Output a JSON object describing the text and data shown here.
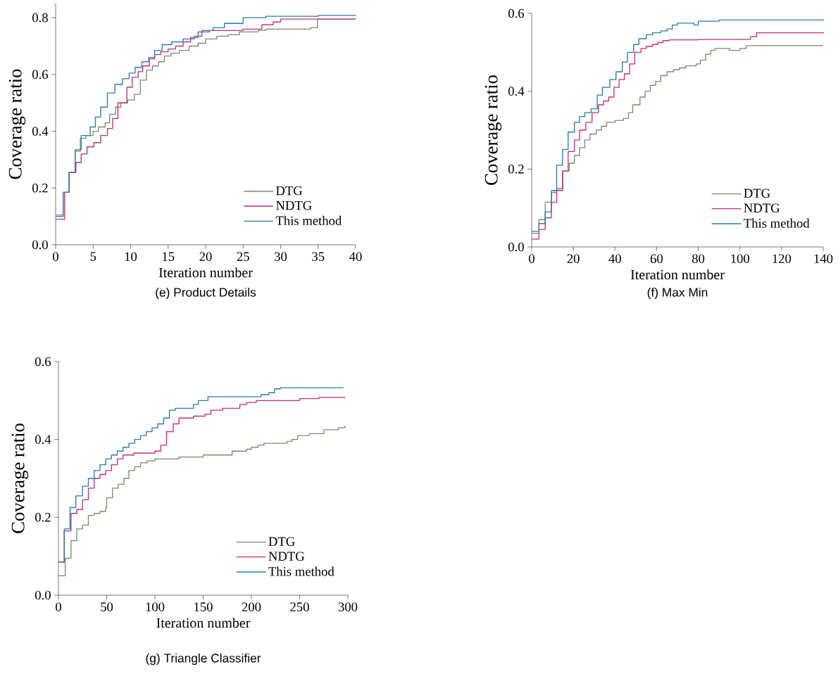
{
  "chart_data": [
    {
      "type": "step",
      "title": "(e) Product Details",
      "xlabel": "Iteration number",
      "ylabel": "Coverage ratio",
      "xlim": [
        0,
        40
      ],
      "ylim": [
        0,
        0.85
      ],
      "xticks": [
        0,
        5,
        10,
        15,
        20,
        25,
        30,
        35,
        40
      ],
      "yticks": [
        {
          "value": 0,
          "label": "0.0"
        },
        {
          "value": 0.2,
          "label": "0.2"
        },
        {
          "value": 0.4,
          "label": "0.4"
        },
        {
          "value": 0.6,
          "label": "0.6"
        },
        {
          "value": 0.8,
          "label": "0.8"
        }
      ],
      "legend": "bottom right",
      "grid": false,
      "series": [
        {
          "name": "DTG",
          "color": "#7a8c6a",
          "x": [
            0,
            1,
            1.8,
            2.6,
            3.3,
            4,
            5,
            5.7,
            6.6,
            7.2,
            8,
            8.7,
            9.6,
            10.5,
            11.3,
            12.1,
            12.9,
            13.7,
            14.5,
            15.4,
            16.5,
            17.8,
            19,
            20,
            21.5,
            23,
            24.5,
            27,
            28,
            34,
            34.9,
            40
          ],
          "values": [
            0.105,
            0.185,
            0.255,
            0.33,
            0.375,
            0.385,
            0.4,
            0.415,
            0.43,
            0.46,
            0.485,
            0.5,
            0.51,
            0.53,
            0.58,
            0.615,
            0.63,
            0.645,
            0.665,
            0.675,
            0.685,
            0.7,
            0.71,
            0.725,
            0.735,
            0.74,
            0.75,
            0.755,
            0.76,
            0.765,
            0.795,
            0.795
          ]
        },
        {
          "name": "NDTG",
          "color": "#c0307a",
          "x": [
            0,
            1.2,
            1.8,
            2.7,
            3.4,
            4.2,
            5.1,
            6,
            6.9,
            7.6,
            8.3,
            9.5,
            10.2,
            11,
            11.6,
            12.5,
            13.2,
            14,
            15,
            16,
            17,
            18,
            19,
            20.5,
            25,
            27.5,
            29,
            30,
            40
          ],
          "values": [
            0.09,
            0.185,
            0.255,
            0.29,
            0.32,
            0.345,
            0.36,
            0.385,
            0.41,
            0.445,
            0.5,
            0.555,
            0.59,
            0.61,
            0.63,
            0.655,
            0.67,
            0.68,
            0.69,
            0.7,
            0.715,
            0.73,
            0.75,
            0.755,
            0.76,
            0.775,
            0.785,
            0.795,
            0.795
          ]
        },
        {
          "name": "This method",
          "color": "#2a7ca8",
          "x": [
            0,
            1,
            1.8,
            2.6,
            3.4,
            4.6,
            5.3,
            6,
            6.9,
            7.9,
            8.9,
            9.8,
            10.6,
            11.5,
            12.4,
            13.2,
            14.2,
            15.5,
            17,
            18.5,
            19.5,
            21,
            22.5,
            25,
            28,
            35,
            40
          ],
          "values": [
            0.1,
            0.185,
            0.255,
            0.335,
            0.385,
            0.415,
            0.45,
            0.485,
            0.535,
            0.565,
            0.585,
            0.605,
            0.625,
            0.645,
            0.66,
            0.685,
            0.705,
            0.715,
            0.725,
            0.735,
            0.755,
            0.765,
            0.78,
            0.8,
            0.805,
            0.808,
            0.81
          ]
        }
      ]
    },
    {
      "type": "step",
      "title": "(f) Max Min",
      "xlabel": "Iteration number",
      "ylabel": "Coverage ratio",
      "xlim": [
        0,
        140
      ],
      "ylim": [
        0,
        0.6
      ],
      "xticks": [
        0,
        20,
        40,
        60,
        80,
        100,
        120,
        140
      ],
      "yticks": [
        {
          "value": 0,
          "label": "0.0"
        },
        {
          "value": 0.2,
          "label": "0.2"
        },
        {
          "value": 0.4,
          "label": "0.4"
        },
        {
          "value": 0.6,
          "label": "0.6"
        }
      ],
      "legend": "bottom right",
      "grid": false,
      "series": [
        {
          "name": "DTG",
          "color": "#7a8c6a",
          "x": [
            0,
            3.5,
            6.5,
            9.5,
            12,
            15,
            18,
            20.5,
            23,
            25.5,
            28,
            31,
            33.5,
            36,
            40,
            44,
            46.5,
            48.5,
            52,
            54.5,
            57,
            59.5,
            62,
            65,
            68,
            71,
            74,
            79,
            81,
            83.5,
            86,
            88,
            95,
            100,
            103,
            140
          ],
          "values": [
            0.035,
            0.07,
            0.115,
            0.14,
            0.15,
            0.195,
            0.215,
            0.235,
            0.255,
            0.275,
            0.29,
            0.3,
            0.31,
            0.32,
            0.325,
            0.33,
            0.345,
            0.365,
            0.385,
            0.4,
            0.415,
            0.425,
            0.44,
            0.45,
            0.455,
            0.46,
            0.465,
            0.47,
            0.48,
            0.495,
            0.505,
            0.51,
            0.505,
            0.51,
            0.517,
            0.517
          ]
        },
        {
          "name": "NDTG",
          "color": "#c0307a",
          "x": [
            0,
            3.5,
            6.5,
            9.5,
            12,
            14.8,
            17.5,
            20.5,
            23,
            26,
            29,
            32,
            34.5,
            37,
            39.5,
            42,
            44.5,
            47,
            49.5,
            52.5,
            55,
            58,
            60.5,
            63,
            66,
            80,
            105,
            108,
            140
          ],
          "values": [
            0.02,
            0.045,
            0.075,
            0.115,
            0.145,
            0.195,
            0.245,
            0.275,
            0.3,
            0.32,
            0.345,
            0.365,
            0.375,
            0.385,
            0.41,
            0.43,
            0.445,
            0.47,
            0.5,
            0.51,
            0.515,
            0.52,
            0.525,
            0.53,
            0.532,
            0.533,
            0.54,
            0.55,
            0.552
          ]
        },
        {
          "name": "This method",
          "color": "#2a7ca8",
          "x": [
            0,
            3.5,
            6.5,
            9.5,
            12,
            14.8,
            17.5,
            20.5,
            23,
            25.5,
            28.5,
            31.5,
            34,
            37.5,
            40.5,
            43.5,
            46,
            49,
            51.5,
            55,
            58,
            62,
            65,
            67.5,
            70,
            78,
            80,
            90,
            140
          ],
          "values": [
            0.04,
            0.06,
            0.09,
            0.145,
            0.21,
            0.25,
            0.295,
            0.32,
            0.335,
            0.345,
            0.355,
            0.39,
            0.41,
            0.43,
            0.45,
            0.475,
            0.5,
            0.52,
            0.535,
            0.545,
            0.55,
            0.555,
            0.56,
            0.57,
            0.575,
            0.57,
            0.58,
            0.583,
            0.585
          ]
        }
      ]
    },
    {
      "type": "step",
      "title": "(g) Triangle Classifier",
      "xlabel": "Iteration number",
      "ylabel": "Coverage ratio",
      "xlim": [
        0,
        300
      ],
      "ylim": [
        0,
        0.6
      ],
      "xticks": [
        0,
        50,
        100,
        150,
        200,
        250,
        300
      ],
      "yticks": [
        {
          "value": 0,
          "label": "0.0"
        },
        {
          "value": 0.2,
          "label": "0.2"
        },
        {
          "value": 0.4,
          "label": "0.4"
        },
        {
          "value": 0.6,
          "label": "0.6"
        }
      ],
      "legend": "bottom right",
      "grid": false,
      "series": [
        {
          "name": "DTG",
          "color": "#7a8c6a",
          "x": [
            0,
            7,
            13,
            19,
            25,
            31,
            37,
            43,
            49,
            50,
            56,
            62,
            68,
            73,
            79,
            85,
            92,
            100,
            125,
            150,
            180,
            195,
            200,
            207,
            213,
            230,
            237,
            242,
            248,
            260,
            275,
            290,
            297
          ],
          "values": [
            0.05,
            0.095,
            0.14,
            0.17,
            0.18,
            0.205,
            0.21,
            0.215,
            0.225,
            0.25,
            0.275,
            0.285,
            0.3,
            0.32,
            0.33,
            0.34,
            0.345,
            0.35,
            0.355,
            0.36,
            0.37,
            0.375,
            0.38,
            0.385,
            0.39,
            0.39,
            0.395,
            0.4,
            0.41,
            0.415,
            0.425,
            0.43,
            0.435
          ]
        },
        {
          "name": "NDTG",
          "color": "#c0307a",
          "x": [
            0,
            6,
            13,
            19,
            25,
            31,
            37,
            43,
            49,
            55,
            61,
            67,
            78,
            100,
            106,
            112,
            119,
            125,
            140,
            152,
            158,
            170,
            188,
            195,
            205,
            250,
            270,
            297
          ],
          "values": [
            0.085,
            0.165,
            0.21,
            0.22,
            0.245,
            0.275,
            0.3,
            0.31,
            0.32,
            0.335,
            0.35,
            0.36,
            0.365,
            0.37,
            0.385,
            0.42,
            0.44,
            0.455,
            0.46,
            0.465,
            0.475,
            0.48,
            0.49,
            0.495,
            0.5,
            0.505,
            0.508,
            0.507
          ]
        },
        {
          "name": "This method",
          "color": "#2a7ca8",
          "x": [
            0,
            6,
            12,
            18,
            25,
            31,
            37,
            43,
            49,
            55,
            61,
            67,
            73,
            79,
            85,
            91,
            97,
            103,
            109,
            115,
            121,
            140,
            145,
            155,
            190,
            210,
            218,
            224,
            230,
            295
          ],
          "values": [
            0.085,
            0.17,
            0.225,
            0.255,
            0.28,
            0.3,
            0.32,
            0.335,
            0.35,
            0.36,
            0.37,
            0.38,
            0.39,
            0.4,
            0.41,
            0.42,
            0.43,
            0.44,
            0.455,
            0.475,
            0.48,
            0.49,
            0.5,
            0.51,
            0.51,
            0.515,
            0.52,
            0.53,
            0.533,
            0.535
          ]
        }
      ]
    }
  ]
}
